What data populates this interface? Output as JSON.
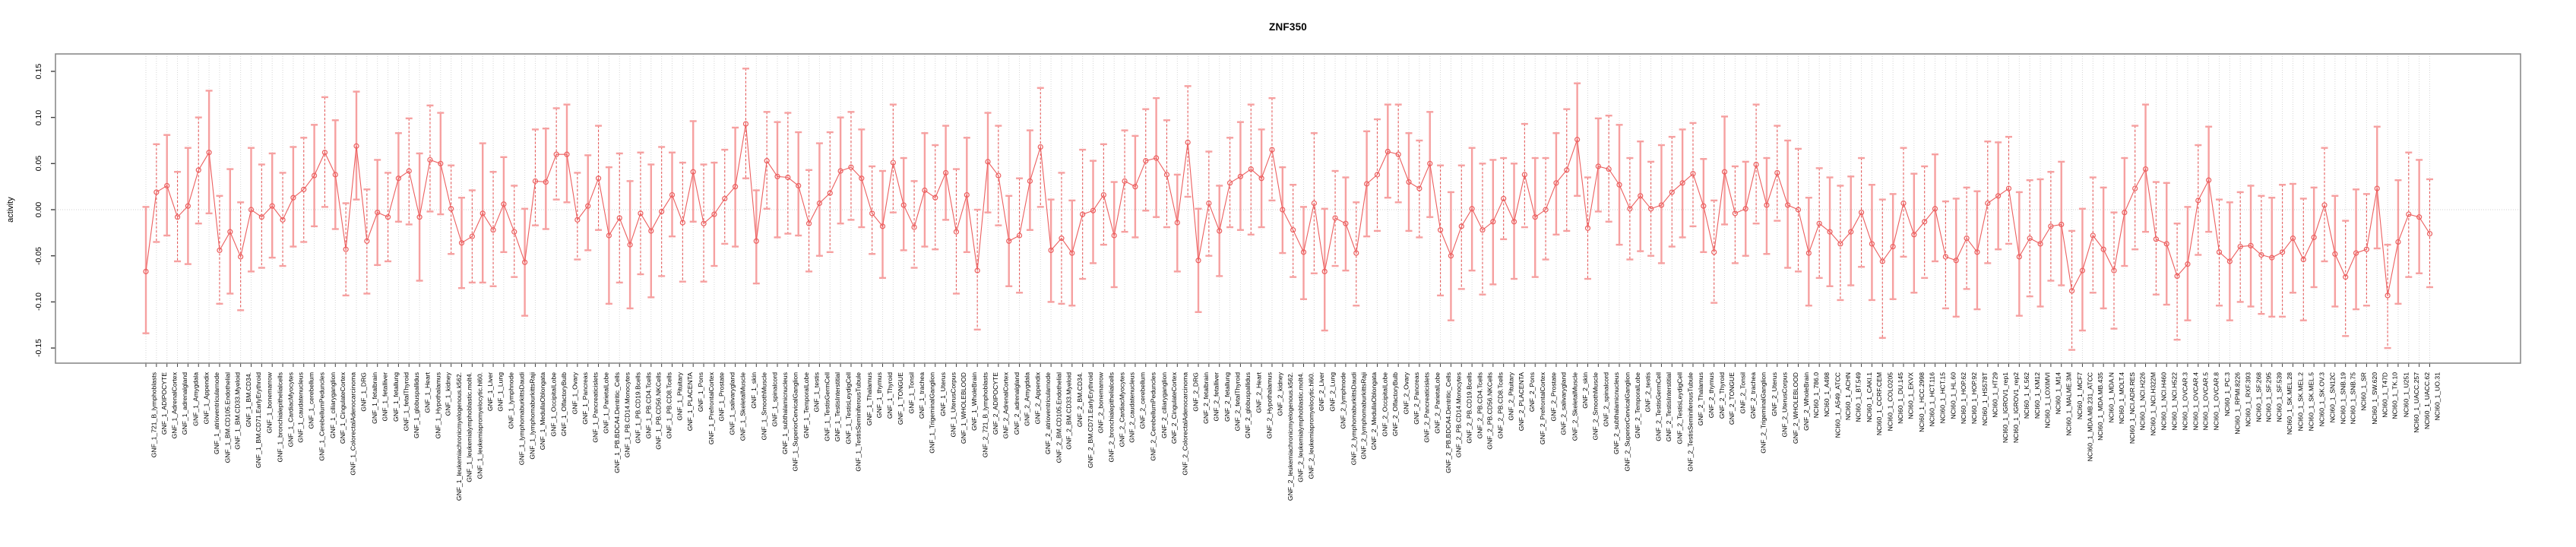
{
  "title": "ZNF350",
  "chart_data": {
    "type": "line",
    "title": "ZNF350",
    "xlabel": "",
    "ylabel": "activity",
    "ylim": [
      -0.17,
      0.17
    ],
    "yticks": [
      0.15,
      0.1,
      0.05,
      0.0,
      -0.05,
      -0.1,
      -0.15
    ],
    "ytick_labels": [
      "0.15",
      "0.10",
      "0.05",
      "0.00",
      "-0.05",
      "-0.10",
      "-0.15"
    ],
    "grid": "vertical dotted gridline at every category; horizontal dotted reference line at 0",
    "legend": "none",
    "marker": "open-circle",
    "error_bars": true,
    "colors": {
      "point": "#ec5f5f",
      "line": "#ec5f5f",
      "errorbar_solid": "#f6a0a0",
      "errorbar_dashed": "#e65c5c",
      "gridline": "#d6d6d6",
      "zero_line": "#d0d0d0",
      "box": "#8a8a8a",
      "tick": "#404040",
      "text": "#000000"
    },
    "categories": [
      "GNF_1_721_B_lymphoblasts",
      "GNF_1_ADIPOCYTE",
      "GNF_1_AdrenalCortex",
      "GNF_1_adrenalgland",
      "GNF_1_Amygdala",
      "GNF_1_Appendix",
      "GNF_1_atrioventricularnode",
      "GNF_1_BM.CD105.Endothelial",
      "GNF_1_BM.CD33.Myeloid",
      "GNF_1_BM.CD34.",
      "GNF_1_BM.CD71.EarlyErythroid",
      "GNF_1_bonemarrow",
      "GNF_1_bronchialepithelialcells",
      "GNF_1_CardiacMyocytes",
      "GNF_1_caudatenucleus",
      "GNF_1_cerebellum",
      "GNF_1_CerebellumPeduncles",
      "GNF_1_ciliaryganglion",
      "GNF_1_CingulateCortex",
      "GNF_1_ColorectalAdenocarcinoma",
      "GNF_1_DRG",
      "GNF_1_fetalbrain",
      "GNF_1_fetalliver",
      "GNF_1_fetallung",
      "GNF_1_fetalThyroid",
      "GNF_1_globuspallidus",
      "GNF_1_Heart",
      "GNF_1_Hypothalamus",
      "GNF_1_kidney",
      "GNF_1_leukemiachronicmyelogenous.k562.",
      "GNF_1_leukemialymphoblastic.molt4.",
      "GNF_1_leukemiapromyelocytic.hl60.",
      "GNF_1_Liver",
      "GNF_1_Lung",
      "GNF_1_lymphnode",
      "GNF_1_lymphomaburkittsDaudi",
      "GNF_1_lymphomaburkittsRaji",
      "GNF_1_MedullaOblongata",
      "GNF_1_OccipitalLobe",
      "GNF_1_OlfactoryBulb",
      "GNF_1_Ovary",
      "GNF_1_Pancreas",
      "GNF_1_Pancreaticislets",
      "GNF_1_ParietalLobe",
      "GNF_1_PB.BDCA4.Dentritic_Cells",
      "GNF_1_PB.CD14.Monocytes",
      "GNF_1_PB.CD19.Bcells",
      "GNF_1_PB.CD4.Tcells",
      "GNF_1_PB.CD56.NKCells",
      "GNF_1_PB.CD8.Tcells",
      "GNF_1_Pituitary",
      "GNF_1_PLACENTA",
      "GNF_1_Pons",
      "GNF_1_PrefrontalCortex",
      "GNF_1_Prostate",
      "GNF_1_salivarygland",
      "GNF_1_SkeletalMuscle",
      "GNF_1_skin",
      "GNF_1_SmoothMuscle",
      "GNF_1_spinalcord",
      "GNF_1_subthalamicnucleus",
      "GNF_1_SuperiorCervicalGanglion",
      "GNF_1_TemporalLobe",
      "GNF_1_testis",
      "GNF_1_TestisGermCell",
      "GNF_1_TestisInterstitial",
      "GNF_1_TestisLeydigCell",
      "GNF_1_TestisSeminiferousTubule",
      "GNF_1_Thalamus",
      "GNF_1_thymus",
      "GNF_1_Thyroid",
      "GNF_1_TONGUE",
      "GNF_1_Tonsil",
      "GNF_1_trachea",
      "GNF_1_TrigeminalGanglion",
      "GNF_1_Uterus",
      "GNF_1_UterusCorpus",
      "GNF_1_WHOLEBLOOD",
      "GNF_1_WholeBrain",
      "GNF_2_721_B_lymphoblasts",
      "GNF_2_ADIPOCYTE",
      "GNF_2_AdrenalCortex",
      "GNF_2_adrenalgland",
      "GNF_2_Amygdala",
      "GNF_2_Appendix",
      "GNF_2_atrioventricularnode",
      "GNF_2_BM.CD105.Endothelial",
      "GNF_2_BM.CD33.Myeloid",
      "GNF_2_BM.CD34.",
      "GNF_2_BM.CD71.EarlyErythroid",
      "GNF_2_bonemarrow",
      "GNF_2_bronchialepithelialcells",
      "GNF_2_CardiacMyocytes",
      "GNF_2_caudatenucleus",
      "GNF_2_cerebellum",
      "GNF_2_CerebellumPeduncles",
      "GNF_2_ciliaryganglion",
      "GNF_2_CingulateCortex",
      "GNF_2_ColorectalAdenocarcinoma",
      "GNF_2_DRG",
      "GNF_2_fetalbrain",
      "GNF_2_fetalliver",
      "GNF_2_fetallung",
      "GNF_2_fetalThyroid",
      "GNF_2_globuspallidus",
      "GNF_2_Heart",
      "GNF_2_Hypothalamus",
      "GNF_2_kidney",
      "GNF_2_leukemiachronicmyelogenous.k562.",
      "GNF_2_leukemialymphoblastic.molt4.",
      "GNF_2_leukemiapromyelocytic.hl60.",
      "GNF_2_Liver",
      "GNF_2_Lung",
      "GNF_2_lymphnode",
      "GNF_2_lymphomaburkittsDaudi",
      "GNF_2_lymphomaburkittsRaji",
      "GNF_2_MedullaOblongata",
      "GNF_2_OccipitalLobe",
      "GNF_2_OlfactoryBulb",
      "GNF_2_Ovary",
      "GNF_2_Pancreas",
      "GNF_2_Pancreaticislets",
      "GNF_2_ParietalLobe",
      "GNF_2_PB.BDCA4.Dentritic_Cells",
      "GNF_2_PB.CD14.Monocytes",
      "GNF_2_PB.CD19.Bcells",
      "GNF_2_PB.CD4.Tcells",
      "GNF_2_PB.CD56.NKCells",
      "GNF_2_PB.CD8.Tcells",
      "GNF_2_Pituitary",
      "GNF_2_PLACENTA",
      "GNF_2_Pons",
      "GNF_2_PrefrontalCortex",
      "GNF_2_Prostate",
      "GNF_2_salivarygland",
      "GNF_2_SkeletalMuscle",
      "GNF_2_skin",
      "GNF_2_SmoothMuscle",
      "GNF_2_spinalcord",
      "GNF_2_subthalamicnucleus",
      "GNF_2_SuperiorCervicalGanglion",
      "GNF_2_TemporalLobe",
      "GNF_2_testis",
      "GNF_2_TestisGermCell",
      "GNF_2_TestisInterstitial",
      "GNF_2_TestisLeydigCell",
      "GNF_2_TestisSeminiferousTubule",
      "GNF_2_Thalamus",
      "GNF_2_thymus",
      "GNF_2_Thyroid",
      "GNF_2_TONGUE",
      "GNF_2_Tonsil",
      "GNF_2_trachea",
      "GNF_2_TrigeminalGanglion",
      "GNF_2_Uterus",
      "GNF_2_UterusCorpus",
      "GNF_2_WHOLEBLOOD",
      "GNF_2_WholeBrain",
      "NCI60_1_786.0",
      "NCI60_1_A498",
      "NCI60_1_A549_ATCC",
      "NCI60_1_ACHN",
      "NCI60_1_BT.549",
      "NCI60_1_CAKI.1",
      "NCI60_1_CCRF.CEM",
      "NCI60_1_COLO205",
      "NCI60_1_DU.145",
      "NCI60_1_EKVX",
      "NCI60_1_HCC.2998",
      "NCI60_1_HCT.116",
      "NCI60_1_HCT.15",
      "NCI60_1_HL.60",
      "NCI60_1_HOP.62",
      "NCI60_1_HOP.92",
      "NCI60_1_HS578T",
      "NCI60_1_HT29",
      "NCI60_1_IGROV1_rep1",
      "NCI60_1_IGROV1_rep2",
      "NCI60_1_K.562",
      "NCI60_1_KM12",
      "NCI60_1_LOXIMVI",
      "NCI60_1_M14",
      "NCI60_1_MALME.3M",
      "NCI60_1_MCF7",
      "NCI60_1_MDA.MB.231_ATCC",
      "NCI60_1_MDA.MB.435",
      "NCI60_1_MDA.N",
      "NCI60_1_MOLT.4",
      "NCI60_1_NCI.ADR.RES",
      "NCI60_1_NCI.H226",
      "NCI60_1_NCI.H322M",
      "NCI60_1_NCI.H460",
      "NCI60_1_NCI.H522",
      "NCI60_1_OVCAR.3",
      "NCI60_1_OVCAR.4",
      "NCI60_1_OVCAR.5",
      "NCI60_1_OVCAR.8",
      "NCI60_1_PC.3",
      "NCI60_1_RPMI.8226",
      "NCI60_1_RXF.393",
      "NCI60_1_SF.268",
      "NCI60_1_SF.295",
      "NCI60_1_SF.539",
      "NCI60_1_SK.MEL.28",
      "NCI60_1_SK.MEL.2",
      "NCI60_1_SK.MEL.5",
      "NCI60_1_SK.OV.3",
      "NCI60_1_SN12C",
      "NCI60_1_SNB.19",
      "NCI60_1_SNB.75",
      "NCI60_1_SR",
      "NCI60_1_SW.620",
      "NCI60_1_T47D",
      "NCI60_1_TK.10",
      "NCI60_1_U251",
      "NCI60_1_UACC.257",
      "NCI60_1_UACC.62",
      "NCI60_1_UO.31"
    ],
    "values": [
      -0.067,
      0.019,
      0.026,
      -0.008,
      0.004,
      0.043,
      0.062,
      -0.044,
      -0.024,
      -0.051,
      0.0,
      -0.008,
      0.004,
      -0.011,
      0.013,
      0.022,
      0.037,
      0.062,
      0.038,
      -0.043,
      0.069,
      -0.034,
      -0.003,
      -0.008,
      0.034,
      0.042,
      -0.008,
      0.054,
      0.05,
      0.001,
      -0.036,
      -0.029,
      -0.004,
      -0.022,
      0.006,
      -0.024,
      -0.057,
      0.031,
      0.03,
      0.06,
      0.06,
      -0.011,
      0.004,
      0.034,
      -0.028,
      -0.009,
      -0.038,
      -0.004,
      -0.023,
      -0.002,
      0.016,
      -0.014,
      0.041,
      -0.015,
      -0.005,
      0.012,
      0.025,
      0.093,
      -0.034,
      0.053,
      0.036,
      0.035,
      0.026,
      -0.015,
      0.007,
      0.018,
      0.042,
      0.046,
      0.034,
      -0.004,
      -0.018,
      0.051,
      0.005,
      -0.019,
      0.021,
      0.013,
      0.04,
      -0.024,
      0.016,
      -0.066,
      0.052,
      0.037,
      -0.034,
      -0.028,
      0.031,
      0.068,
      -0.044,
      -0.031,
      -0.047,
      -0.005,
      -0.001,
      0.016,
      -0.028,
      0.031,
      0.025,
      0.053,
      0.056,
      0.038,
      -0.014,
      0.073,
      -0.055,
      0.007,
      -0.023,
      0.029,
      0.036,
      0.044,
      0.034,
      0.065,
      0.0,
      -0.022,
      -0.046,
      0.007,
      -0.067,
      -0.009,
      -0.015,
      -0.047,
      0.028,
      0.038,
      0.063,
      0.06,
      0.03,
      0.023,
      0.05,
      -0.022,
      -0.05,
      -0.018,
      0.001,
      -0.022,
      -0.013,
      0.012,
      -0.013,
      0.038,
      -0.008,
      0.0,
      0.029,
      0.043,
      0.076,
      -0.02,
      0.047,
      0.044,
      0.027,
      0.001,
      0.015,
      0.001,
      0.005,
      0.019,
      0.029,
      0.039,
      0.004,
      -0.046,
      0.041,
      -0.004,
      0.001,
      0.049,
      0.005,
      0.04,
      0.005,
      0.0,
      -0.047,
      -0.015,
      -0.024,
      -0.037,
      -0.024,
      -0.003,
      -0.037,
      -0.056,
      -0.04,
      0.007,
      -0.027,
      -0.013,
      0.001,
      -0.051,
      -0.055,
      -0.031,
      -0.046,
      0.007,
      0.015,
      0.023,
      -0.051,
      -0.031,
      -0.037,
      -0.018,
      -0.016,
      -0.088,
      -0.066,
      -0.028,
      -0.043,
      -0.066,
      -0.003,
      0.023,
      0.044,
      -0.032,
      -0.037,
      -0.072,
      -0.059,
      0.01,
      0.032,
      -0.046,
      -0.056,
      -0.04,
      -0.039,
      -0.049,
      -0.052,
      -0.046,
      -0.031,
      -0.054,
      -0.03,
      0.005,
      -0.048,
      -0.073,
      -0.047,
      -0.043,
      0.023,
      -0.093,
      -0.035,
      -0.005,
      -0.008,
      -0.026
    ],
    "ci_lower": [
      -0.134,
      -0.035,
      -0.028,
      -0.056,
      -0.059,
      -0.015,
      -0.004,
      -0.102,
      -0.091,
      -0.109,
      -0.067,
      -0.063,
      -0.052,
      -0.061,
      -0.04,
      -0.035,
      -0.018,
      0.003,
      -0.021,
      -0.093,
      0.011,
      -0.091,
      -0.06,
      -0.056,
      -0.013,
      -0.016,
      -0.077,
      -0.002,
      -0.005,
      -0.048,
      -0.085,
      -0.079,
      -0.079,
      -0.083,
      -0.046,
      -0.073,
      -0.115,
      -0.017,
      -0.021,
      0.011,
      0.008,
      -0.054,
      -0.044,
      -0.022,
      -0.102,
      -0.079,
      -0.107,
      -0.07,
      -0.095,
      -0.072,
      -0.029,
      -0.078,
      -0.013,
      -0.078,
      -0.061,
      -0.037,
      -0.04,
      0.034,
      -0.08,
      0.001,
      -0.03,
      -0.026,
      -0.028,
      -0.067,
      -0.05,
      -0.046,
      -0.015,
      -0.011,
      -0.019,
      -0.048,
      -0.074,
      -0.003,
      -0.044,
      -0.063,
      -0.04,
      -0.043,
      -0.011,
      -0.091,
      -0.046,
      -0.13,
      -0.003,
      -0.017,
      -0.083,
      -0.09,
      -0.022,
      0.003,
      -0.1,
      -0.102,
      -0.104,
      -0.075,
      -0.058,
      -0.038,
      -0.084,
      -0.024,
      -0.03,
      -0.001,
      -0.008,
      -0.019,
      -0.067,
      0.014,
      -0.111,
      -0.05,
      -0.072,
      -0.019,
      -0.022,
      -0.027,
      -0.019,
      0.01,
      -0.047,
      -0.073,
      -0.097,
      -0.069,
      -0.131,
      -0.061,
      -0.066,
      -0.104,
      -0.029,
      -0.023,
      0.013,
      0.008,
      -0.023,
      -0.03,
      -0.008,
      -0.093,
      -0.12,
      -0.086,
      -0.066,
      -0.092,
      -0.081,
      -0.032,
      -0.075,
      -0.019,
      -0.073,
      -0.054,
      -0.027,
      -0.023,
      0.015,
      -0.075,
      -0.002,
      -0.013,
      -0.038,
      -0.054,
      -0.045,
      -0.05,
      -0.058,
      -0.04,
      -0.03,
      -0.018,
      -0.046,
      -0.101,
      -0.016,
      -0.058,
      -0.05,
      -0.015,
      -0.048,
      -0.012,
      -0.063,
      -0.067,
      -0.104,
      -0.074,
      -0.083,
      -0.098,
      -0.082,
      -0.062,
      -0.098,
      -0.139,
      -0.097,
      -0.051,
      -0.09,
      -0.074,
      -0.056,
      -0.107,
      -0.116,
      -0.086,
      -0.108,
      -0.058,
      -0.043,
      -0.037,
      -0.115,
      -0.094,
      -0.105,
      -0.077,
      -0.082,
      -0.152,
      -0.131,
      -0.09,
      -0.107,
      -0.129,
      -0.061,
      -0.043,
      -0.024,
      -0.092,
      -0.103,
      -0.141,
      -0.12,
      -0.049,
      -0.024,
      -0.104,
      -0.12,
      -0.1,
      -0.105,
      -0.113,
      -0.116,
      -0.116,
      -0.09,
      -0.12,
      -0.084,
      -0.056,
      -0.105,
      -0.137,
      -0.108,
      -0.104,
      -0.042,
      -0.15,
      -0.102,
      -0.073,
      -0.069,
      -0.084
    ],
    "ci_upper": [
      0.003,
      0.071,
      0.081,
      0.041,
      0.067,
      0.1,
      0.129,
      0.015,
      0.044,
      0.008,
      0.067,
      0.049,
      0.061,
      0.04,
      0.068,
      0.078,
      0.092,
      0.122,
      0.097,
      0.007,
      0.128,
      0.022,
      0.054,
      0.04,
      0.083,
      0.099,
      0.061,
      0.113,
      0.105,
      0.048,
      0.013,
      0.021,
      0.072,
      0.041,
      0.057,
      0.026,
      0.001,
      0.087,
      0.088,
      0.11,
      0.114,
      0.04,
      0.059,
      0.091,
      0.046,
      0.061,
      0.031,
      0.062,
      0.049,
      0.068,
      0.062,
      0.051,
      0.096,
      0.049,
      0.051,
      0.065,
      0.089,
      0.153,
      0.021,
      0.106,
      0.095,
      0.105,
      0.084,
      0.043,
      0.072,
      0.084,
      0.1,
      0.106,
      0.087,
      0.047,
      0.042,
      0.114,
      0.056,
      0.031,
      0.083,
      0.07,
      0.091,
      0.044,
      0.078,
      0.0,
      0.105,
      0.091,
      0.015,
      0.034,
      0.086,
      0.132,
      0.011,
      0.04,
      0.01,
      0.065,
      0.053,
      0.071,
      0.03,
      0.086,
      0.08,
      0.109,
      0.121,
      0.097,
      0.038,
      0.134,
      0.001,
      0.063,
      0.026,
      0.078,
      0.095,
      0.114,
      0.087,
      0.121,
      0.046,
      0.027,
      0.003,
      0.083,
      0.001,
      0.042,
      0.035,
      0.008,
      0.085,
      0.098,
      0.114,
      0.114,
      0.083,
      0.075,
      0.106,
      0.048,
      0.019,
      0.048,
      0.067,
      0.05,
      0.054,
      0.056,
      0.05,
      0.093,
      0.056,
      0.056,
      0.083,
      0.109,
      0.137,
      0.035,
      0.099,
      0.102,
      0.092,
      0.056,
      0.074,
      0.052,
      0.07,
      0.079,
      0.087,
      0.094,
      0.055,
      0.01,
      0.101,
      0.047,
      0.052,
      0.114,
      0.056,
      0.091,
      0.075,
      0.066,
      0.013,
      0.045,
      0.035,
      0.026,
      0.036,
      0.056,
      0.027,
      0.011,
      0.017,
      0.067,
      0.039,
      0.047,
      0.06,
      0.009,
      0.012,
      0.024,
      0.02,
      0.074,
      0.073,
      0.079,
      0.019,
      0.032,
      0.033,
      0.041,
      0.052,
      -0.023,
      0.001,
      0.035,
      0.024,
      -0.003,
      0.056,
      0.091,
      0.114,
      0.03,
      0.029,
      -0.015,
      0.003,
      0.07,
      0.09,
      0.011,
      0.008,
      0.019,
      0.026,
      0.015,
      0.013,
      0.027,
      0.028,
      0.012,
      0.024,
      0.067,
      0.015,
      -0.012,
      0.022,
      0.017,
      0.09,
      -0.038,
      0.032,
      0.062,
      0.054,
      0.033
    ]
  }
}
